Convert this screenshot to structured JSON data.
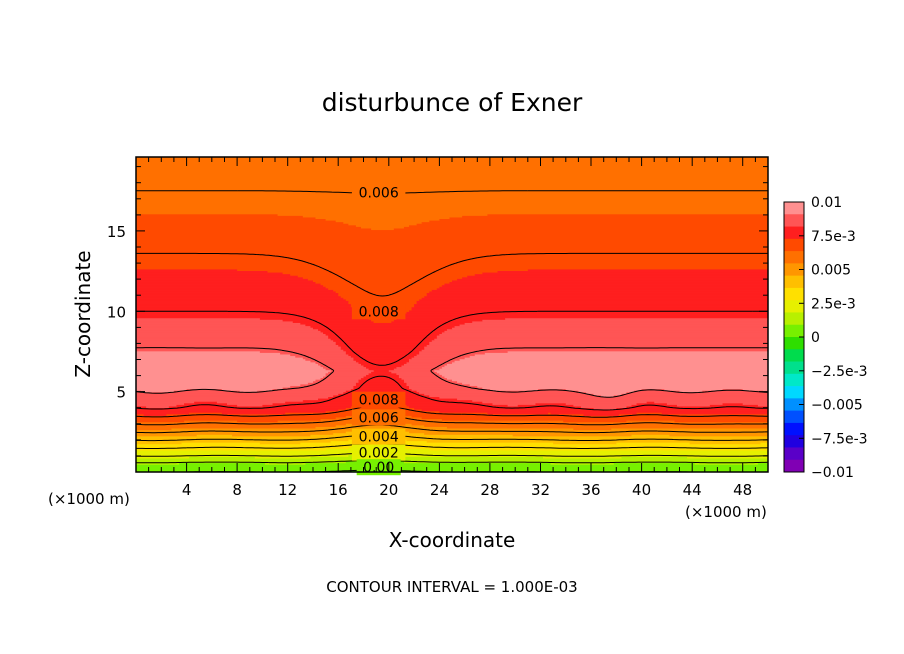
{
  "chart_data": {
    "type": "heatmap",
    "title": "disturbunce of Exner",
    "xlabel": "X-coordinate",
    "ylabel": "Z-coordinate",
    "x_unit": "(×1000 m)",
    "z_unit": "(×1000 m)",
    "footer": "CONTOUR INTERVAL = 1.000E-03",
    "xlim": [
      0,
      50
    ],
    "ylim": [
      0,
      19.6
    ],
    "x_ticks": [
      4,
      8,
      12,
      16,
      20,
      24,
      28,
      32,
      36,
      40,
      44,
      48
    ],
    "y_ticks": [
      5,
      10,
      15
    ],
    "contour_interval": 0.001,
    "contour_profile": {
      "z": [
        0,
        0.6,
        1.0,
        1.5,
        2.0,
        2.5,
        3.0,
        3.5,
        4.0,
        4.6,
        5.2,
        6.3,
        7.5,
        10.0,
        13.6,
        17.5,
        19.6
      ],
      "value": [
        0.0,
        0.001,
        0.002,
        0.003,
        0.004,
        0.005,
        0.006,
        0.007,
        0.008,
        0.0085,
        0.0092,
        0.0097,
        0.0091,
        0.008,
        0.007,
        0.006,
        0.0056
      ]
    },
    "contour_labels": [
      {
        "text": "0.006",
        "x": 19.2,
        "z": 17.4
      },
      {
        "text": "0.008",
        "x": 19.2,
        "z": 10.0
      },
      {
        "text": "0.008",
        "x": 19.2,
        "z": 4.5
      },
      {
        "text": "0.006",
        "x": 19.2,
        "z": 3.4
      },
      {
        "text": "0.004",
        "x": 19.2,
        "z": 2.2
      },
      {
        "text": "0.002",
        "x": 19.2,
        "z": 1.2
      },
      {
        "text": "0.00",
        "x": 19.2,
        "z": 0.3
      }
    ],
    "colorbar": {
      "vmin": -0.01,
      "vmax": 0.01,
      "tick_labels": [
        "0.01",
        "7.5e-3",
        "0.005",
        "2.5e-3",
        "0",
        "−2.5e-3",
        "−0.005",
        "−7.5e-3",
        "−0.01"
      ],
      "tick_values": [
        0.01,
        0.0075,
        0.005,
        0.0025,
        0,
        -0.0025,
        -0.005,
        -0.0075,
        -0.01
      ],
      "colors": [
        "#ff9090",
        "#ff5555",
        "#ff1f1f",
        "#ff4a00",
        "#ff7000",
        "#ff9600",
        "#ffbf00",
        "#ffe000",
        "#e6f000",
        "#b8f000",
        "#77f000",
        "#2ede00",
        "#00dc4d",
        "#00e08c",
        "#00e8c8",
        "#00d8ff",
        "#0090ff",
        "#0050ff",
        "#0010ff",
        "#2000e0",
        "#5a00c8",
        "#8000b4"
      ]
    }
  }
}
